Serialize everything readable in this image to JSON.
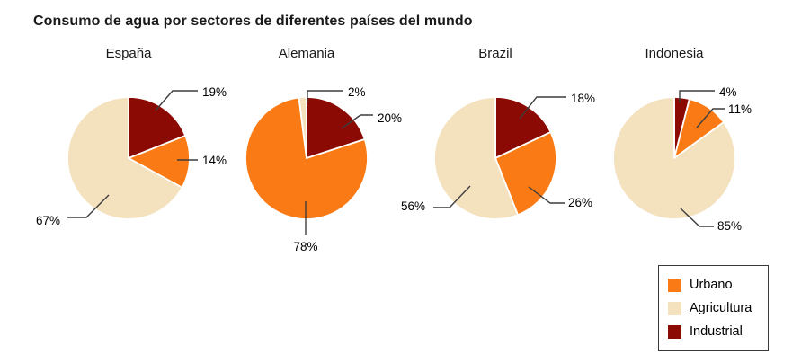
{
  "chart_data": {
    "type": "pie",
    "title": "Consumo de agua por sectores de diferentes países del mundo",
    "start_angle_deg": 0,
    "direction": "clockwise",
    "grid": false,
    "sectors": [
      {
        "name": "Urbano",
        "color": "#FA7B16"
      },
      {
        "name": "Agricultura",
        "color": "#F4E1BE"
      },
      {
        "name": "Industrial",
        "color": "#8B0B04"
      }
    ],
    "legend": {
      "position": "bottom-right",
      "entries": [
        "Urbano",
        "Agricultura",
        "Industrial"
      ]
    },
    "countries": [
      {
        "name": "España",
        "slices": [
          {
            "sector": "Industrial",
            "value": 19,
            "label": "19%"
          },
          {
            "sector": "Urbano",
            "value": 14,
            "label": "14%"
          },
          {
            "sector": "Agricultura",
            "value": 67,
            "label": "67%"
          }
        ]
      },
      {
        "name": "Alemania",
        "slices": [
          {
            "sector": "Industrial",
            "value": 20,
            "label": "20%"
          },
          {
            "sector": "Urbano",
            "value": 78,
            "label": "78%"
          },
          {
            "sector": "Agricultura",
            "value": 2,
            "label": "2%"
          }
        ]
      },
      {
        "name": "Brazil",
        "slices": [
          {
            "sector": "Industrial",
            "value": 18,
            "label": "18%"
          },
          {
            "sector": "Urbano",
            "value": 26,
            "label": "26%"
          },
          {
            "sector": "Agricultura",
            "value": 56,
            "label": "56%"
          }
        ]
      },
      {
        "name": "Indonesia",
        "slices": [
          {
            "sector": "Industrial",
            "value": 4,
            "label": "4%"
          },
          {
            "sector": "Urbano",
            "value": 11,
            "label": "11%"
          },
          {
            "sector": "Agricultura",
            "value": 85,
            "label": "85%"
          }
        ]
      }
    ]
  }
}
